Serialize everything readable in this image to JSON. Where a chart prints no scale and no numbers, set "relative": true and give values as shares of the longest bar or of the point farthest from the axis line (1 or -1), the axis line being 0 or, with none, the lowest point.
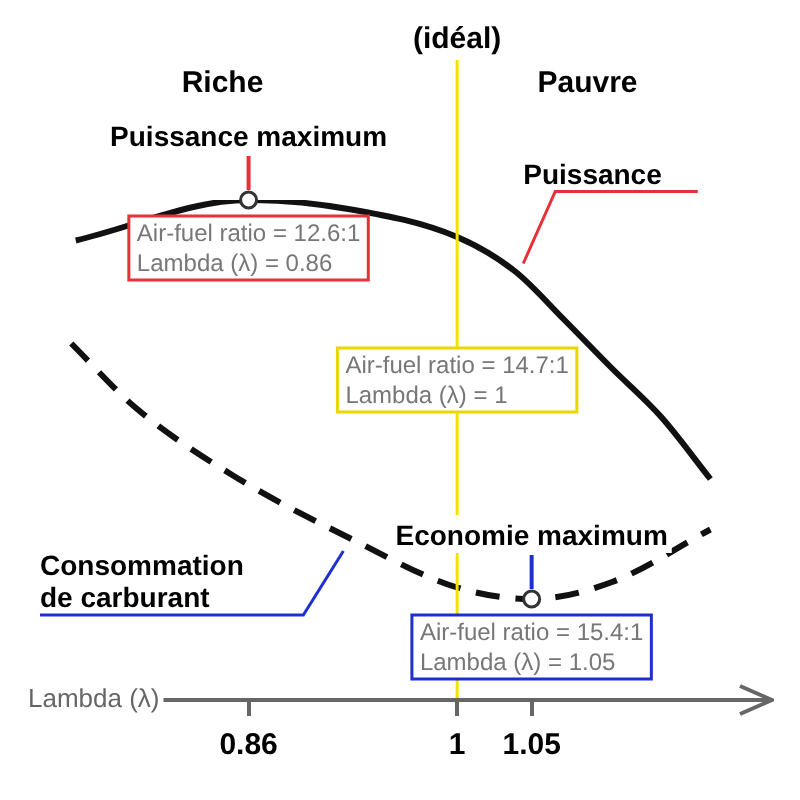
{
  "chart_data": {
    "type": "line",
    "relative": true,
    "xlabel": "Lambda (λ)",
    "xlim": [
      0.72,
      1.21
    ],
    "xticks": [
      0.86,
      1,
      1.05
    ],
    "series": [
      {
        "name": "Puissance",
        "color": "#111111",
        "line_style": "solid",
        "x": [
          0.744,
          0.86,
          0.929,
          1,
          1.039,
          1.072,
          1.104,
          1.137,
          1.17
        ],
        "values": [
          0.919,
          1,
          0.981,
          0.926,
          0.857,
          0.76,
          0.663,
          0.566,
          0.442
        ]
      },
      {
        "name": "Consommation de carburant",
        "color": "#111111",
        "line_style": "dashed",
        "x": [
          0.741,
          0.784,
          0.849,
          0.929,
          1,
          1.05,
          1.104,
          1.17
        ],
        "values": [
          0.713,
          0.585,
          0.45,
          0.322,
          0.225,
          0.202,
          0.236,
          0.341
        ]
      }
    ],
    "ref_lines": [
      {
        "axis": "x",
        "value": 1,
        "label": "(idéal)",
        "color": "#f2e200"
      }
    ],
    "annotations": [
      "Riche",
      "Pauvre",
      {
        "text": "Puissance maximum",
        "x": 0.86,
        "y": 1
      },
      {
        "text": "Air-fuel ratio = 12.6:1\nLambda (λ) = 0.86",
        "x": 0.86,
        "y": 1
      },
      {
        "text": "Air-fuel ratio = 14.7:1\nLambda (λ) = 1",
        "x": 1,
        "y": 0.736
      },
      {
        "text": "Economie maximum",
        "x": 1.05,
        "y": 0.202
      },
      {
        "text": "Air-fuel ratio = 15.4:1\nLambda (λ) = 1.05",
        "x": 1.05,
        "y": 0.202
      }
    ],
    "legend": false,
    "grid": false,
    "marker": "none"
  }
}
